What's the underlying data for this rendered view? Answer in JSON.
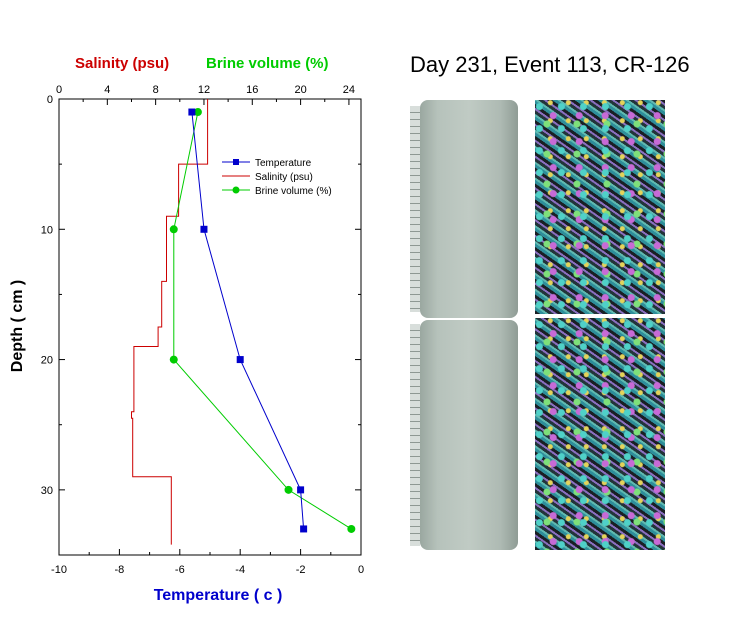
{
  "title": "Day 231, Event 113, CR-126",
  "chart_data": {
    "type": "line",
    "bottom_axis": {
      "label": "Temperature ( c )",
      "range": [
        -10,
        0
      ],
      "ticks": [
        -10,
        -8,
        -6,
        -4,
        -2,
        0
      ],
      "color": "#0000cc"
    },
    "left_axis": {
      "label": "Depth ( cm )",
      "range": [
        0,
        35
      ],
      "ticks": [
        0,
        10,
        20,
        30
      ],
      "inverted": true
    },
    "top_axis": {
      "labels": [
        {
          "text": "Salinity (psu)",
          "color": "#cc0000"
        },
        {
          "text": "Brine volume (%)",
          "color": "#00cc00"
        }
      ],
      "range": [
        0,
        25
      ],
      "ticks": [
        0,
        4,
        8,
        12,
        16,
        20,
        24
      ]
    },
    "series": [
      {
        "name": "Temperature",
        "color": "#0000cc",
        "marker": "square",
        "axis": "bottom",
        "x": [
          -5.6,
          -5.2,
          -4.0,
          -2.0,
          -1.9
        ],
        "depth": [
          1,
          10,
          20,
          30,
          33
        ]
      },
      {
        "name": "Salinity (psu)",
        "color": "#cc0000",
        "marker": "none",
        "axis": "top",
        "step": true,
        "x": [
          12.3,
          12.3,
          9.9,
          9.9,
          8.9,
          8.9,
          8.5,
          8.5,
          8.2,
          8.2,
          6.2,
          6.2,
          6.0,
          6.0,
          6.1,
          6.1,
          9.3,
          9.3
        ],
        "depth": [
          0,
          5,
          5,
          9,
          9,
          14,
          14,
          17.5,
          17.5,
          19,
          19,
          24,
          24,
          24.5,
          24.5,
          29,
          29,
          34.2
        ]
      },
      {
        "name": "Brine volume (%)",
        "color": "#00cc00",
        "marker": "circle",
        "axis": "top",
        "x": [
          11.5,
          9.5,
          9.5,
          19.0,
          24.2
        ],
        "depth": [
          1,
          10,
          20,
          30,
          33
        ]
      }
    ],
    "legend": "top-right"
  }
}
